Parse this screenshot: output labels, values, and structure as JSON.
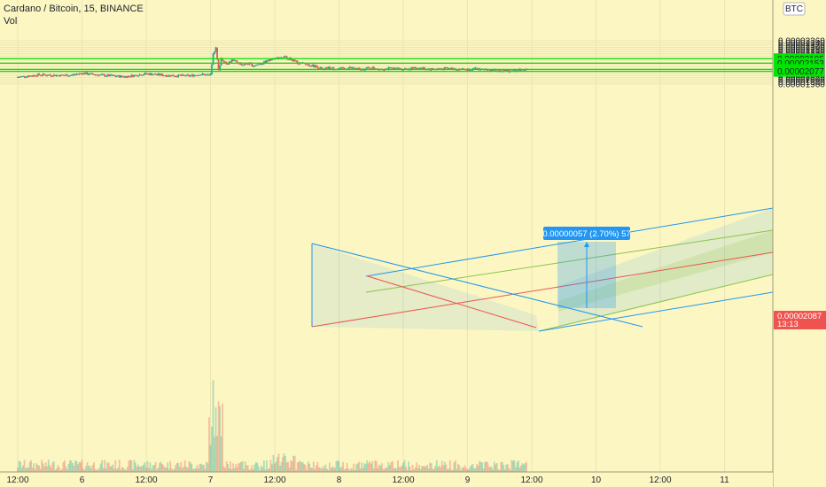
{
  "legend": {
    "symbol": "Cardano / Bitcoin, 15, BINANCE",
    "volume_label": "Vol"
  },
  "currency_badge": "BTC",
  "colors": {
    "background": "#fcf7c2",
    "up_candle": "#26a69a",
    "down_candle": "#ef5350",
    "horizontal_level": "#00e600",
    "channel_line": "#2196f3",
    "median_line": "#ef5350",
    "measure_box": "#2196f3"
  },
  "measure_label": "0.00000057 (2.70%) 57",
  "chart_data": {
    "type": "candlestick",
    "symbol": "ADA/BTC",
    "timeframe": "15",
    "exchange": "BINANCE",
    "y_axis": {
      "range": [
        1.95e-05,
        2.37e-05
      ],
      "ticks": [
        "0.00001960",
        "0.00001980",
        "0.00002000",
        "0.00002020",
        "0.00002040",
        "0.00002060",
        "0.00002080",
        "0.00002100",
        "0.00002120",
        "0.00002140",
        "0.00002160",
        "0.00002180",
        "0.00002200",
        "0.00002220",
        "0.00002240",
        "0.00002260",
        "0.00002280",
        "0.00002300",
        "0.00002320",
        "0.00002340",
        "0.00002360"
      ]
    },
    "x_axis": {
      "ticks": [
        "12:00",
        "6",
        "12:00",
        "7",
        "12:00",
        "8",
        "12:00",
        "9",
        "12:00",
        "10",
        "12:00",
        "11"
      ]
    },
    "price_path": [
      [
        0,
        2.025e-05
      ],
      [
        4,
        2.045e-05
      ],
      [
        8,
        2.04e-05
      ],
      [
        10,
        2.042e-05
      ],
      [
        12,
        2.06e-05
      ],
      [
        16,
        2.04e-05
      ],
      [
        20,
        2.028e-05
      ],
      [
        24,
        2.055e-05
      ],
      [
        28,
        2.04e-05
      ],
      [
        32,
        2.035e-05
      ],
      [
        34,
        2.05e-05
      ],
      [
        35.5,
        2.042e-05
      ],
      [
        36,
        2.045e-05
      ],
      [
        36.5,
        2.25e-05
      ],
      [
        37,
        2.29e-05
      ],
      [
        37.5,
        2.08e-05
      ],
      [
        38,
        2.2e-05
      ],
      [
        39,
        2.15e-05
      ],
      [
        40,
        2.18e-05
      ],
      [
        42,
        2.14e-05
      ],
      [
        43,
        2.15e-05
      ],
      [
        44,
        2.13e-05
      ],
      [
        46,
        2.16e-05
      ],
      [
        48,
        2.2e-05
      ],
      [
        50,
        2.21e-05
      ],
      [
        51,
        2.19e-05
      ],
      [
        52,
        2.16e-05
      ],
      [
        54,
        2.14e-05
      ],
      [
        56,
        2.12e-05
      ],
      [
        57,
        2.09e-05
      ],
      [
        58,
        2.11e-05
      ],
      [
        60,
        2.1e-05
      ],
      [
        62,
        2.11e-05
      ],
      [
        64,
        2.095e-05
      ],
      [
        66,
        2.11e-05
      ],
      [
        68,
        2.1e-05
      ],
      [
        70,
        2.105e-05
      ],
      [
        72,
        2.1e-05
      ],
      [
        75,
        2.11e-05
      ],
      [
        76,
        2.1e-05
      ],
      [
        78,
        2.1e-05
      ],
      [
        80,
        2.105e-05
      ],
      [
        82,
        2.1e-05
      ],
      [
        84,
        2.095e-05
      ],
      [
        86,
        2.1e-05
      ],
      [
        88,
        2.09e-05
      ],
      [
        90,
        2.08e-05
      ],
      [
        92,
        2.085e-05
      ],
      [
        94,
        2.09e-05
      ],
      [
        95,
        2.087e-05
      ]
    ],
    "horizontal_levels": [
      {
        "price": 2.195e-05,
        "label": "0.00002195"
      },
      {
        "price": 2.153e-05,
        "label": "0.00002153"
      },
      {
        "price": 2.095e-05,
        "label": "0.00002095"
      },
      {
        "price": 2.077e-05,
        "label": "0.00002077"
      }
    ],
    "current_price": {
      "label": "0.00002087",
      "countdown": "13:13"
    }
  }
}
